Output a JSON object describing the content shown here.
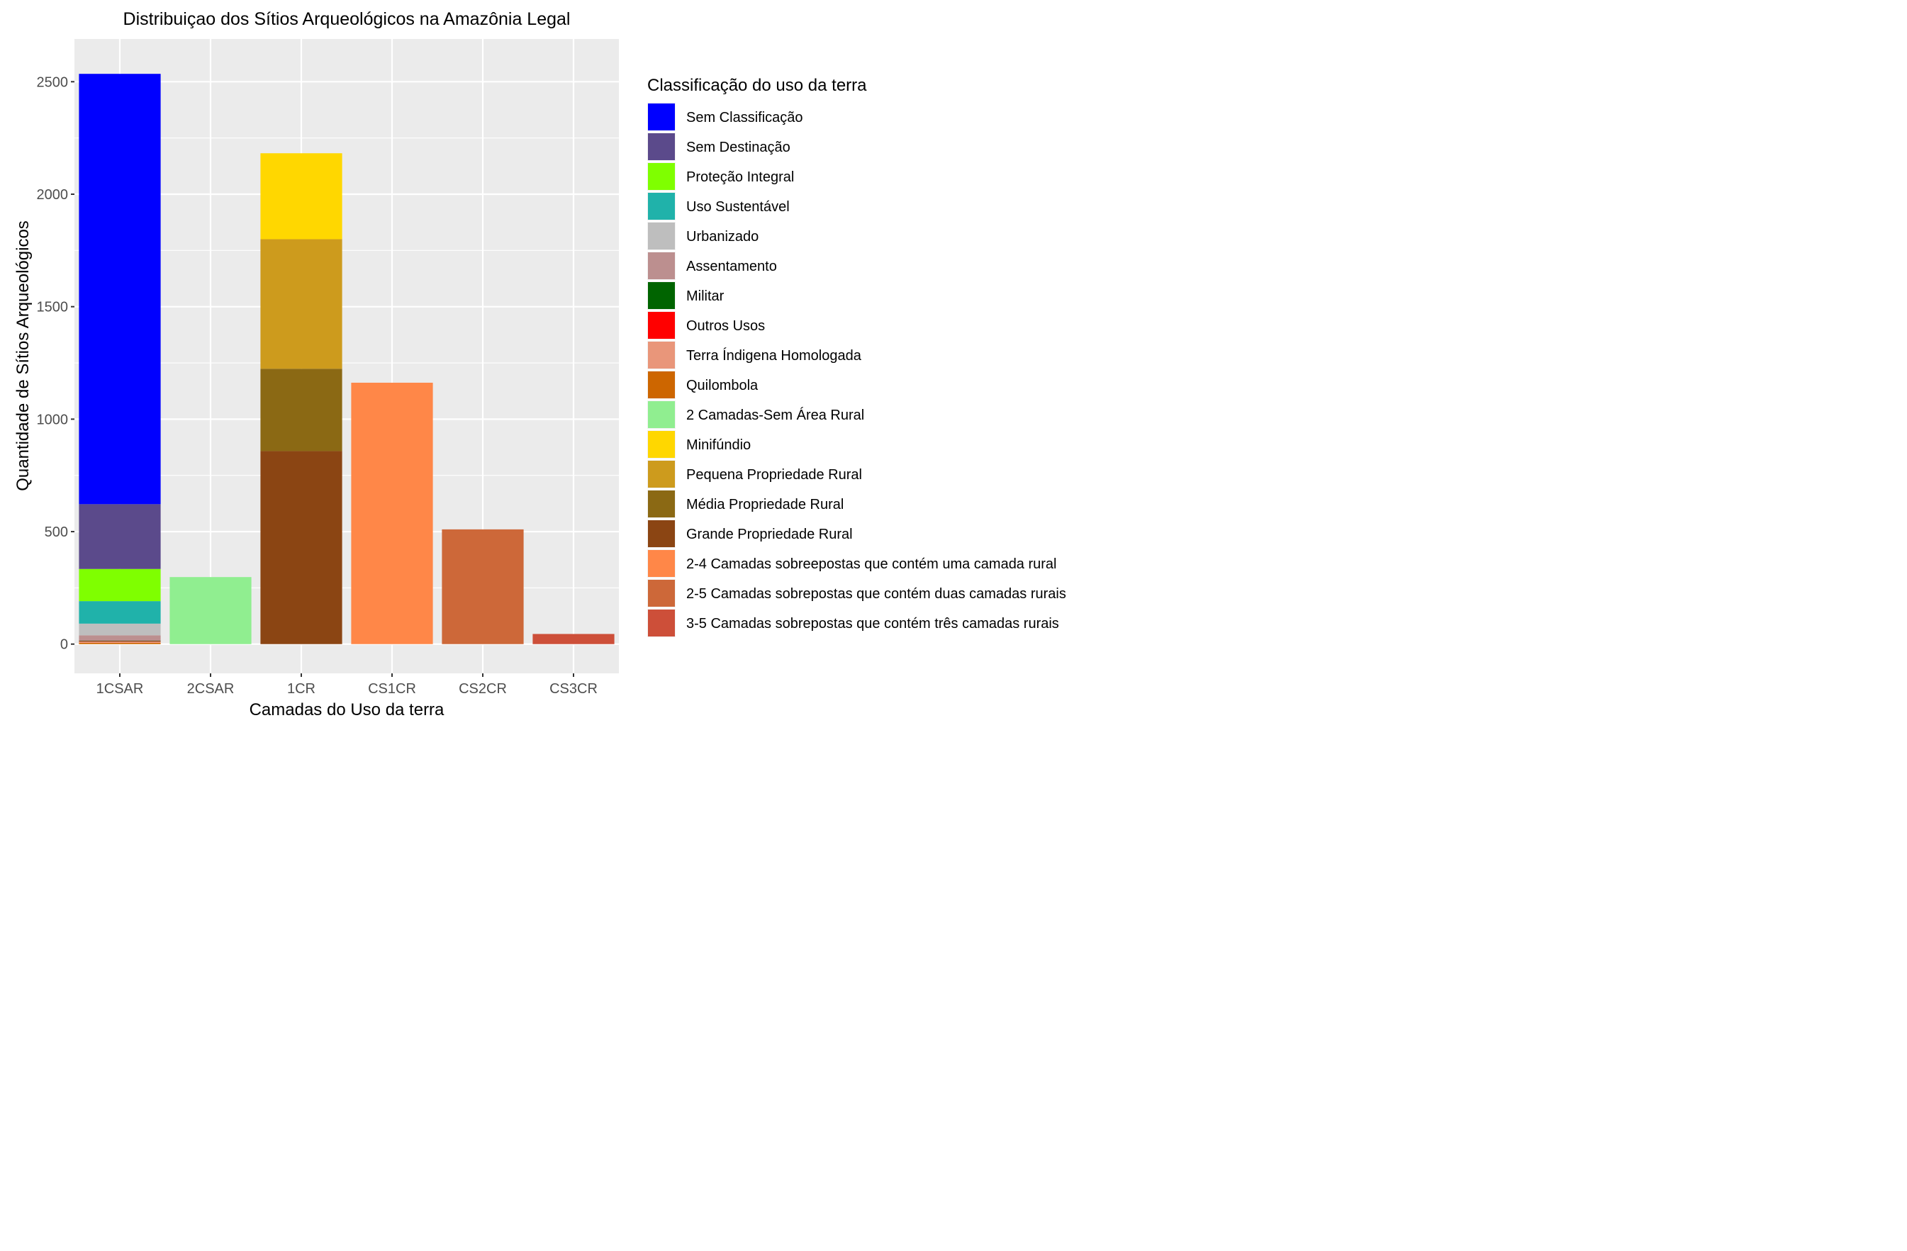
{
  "chart_data": {
    "type": "bar",
    "stacked": true,
    "title": "Distribuiçao dos Sítios Arqueológicos na Amazônia Legal",
    "xlabel": "Camadas do Uso da terra",
    "ylabel": "Quantidade de Sítios Arqueológicos",
    "ylim": [
      -130,
      2690
    ],
    "yticks": [
      0,
      500,
      1000,
      1500,
      2000,
      2500
    ],
    "ytick_labels": [
      "0",
      "500",
      "1000",
      "1500",
      "2000",
      "2500"
    ],
    "grid": true,
    "categories": [
      "1CSAR",
      "2CSAR",
      "1CR",
      "CS1CR",
      "CS2CR",
      "CS3CR"
    ],
    "legend": {
      "title": "Classificação do uso da terra",
      "position": "right"
    },
    "series": [
      {
        "name": "Sem Classificação",
        "color": "#0000FF",
        "values": [
          1913,
          0,
          0,
          0,
          0,
          0
        ]
      },
      {
        "name": "Sem Destinação",
        "color": "#5B4A8B",
        "values": [
          288,
          0,
          0,
          0,
          0,
          0
        ]
      },
      {
        "name": "Proteção Integral",
        "color": "#7FFF00",
        "values": [
          143,
          0,
          0,
          0,
          0,
          0
        ]
      },
      {
        "name": "Uso Sustentável",
        "color": "#20B2AA",
        "values": [
          100,
          0,
          0,
          0,
          0,
          0
        ]
      },
      {
        "name": "Urbanizado",
        "color": "#BEBEBE",
        "values": [
          52,
          0,
          0,
          0,
          0,
          0
        ]
      },
      {
        "name": "Assentamento",
        "color": "#BC8F8F",
        "values": [
          24,
          0,
          0,
          0,
          0,
          0
        ]
      },
      {
        "name": "Militar",
        "color": "#006400",
        "values": [
          2,
          0,
          0,
          0,
          0,
          0
        ]
      },
      {
        "name": "Outros Usos",
        "color": "#FF0000",
        "values": [
          2,
          0,
          0,
          0,
          0,
          0
        ]
      },
      {
        "name": "Terra Índigena Homologada",
        "color": "#E9967A",
        "values": [
          5,
          0,
          0,
          0,
          0,
          0
        ]
      },
      {
        "name": "Quilombola",
        "color": "#CD6600",
        "values": [
          6,
          0,
          0,
          0,
          0,
          0
        ]
      },
      {
        "name": "2 Camadas-Sem Área Rural",
        "color": "#90EE90",
        "values": [
          0,
          298,
          0,
          0,
          0,
          0
        ]
      },
      {
        "name": "Minifúndio",
        "color": "#FFD700",
        "values": [
          0,
          0,
          382,
          0,
          0,
          0
        ]
      },
      {
        "name": "Pequena Propriedade Rural",
        "color": "#CD9B1D",
        "values": [
          0,
          0,
          576,
          0,
          0,
          0
        ]
      },
      {
        "name": "Média Propriedade Rural",
        "color": "#8B6914",
        "values": [
          0,
          0,
          366,
          0,
          0,
          0
        ]
      },
      {
        "name": "Grande Propriedade Rural",
        "color": "#8B4513",
        "values": [
          0,
          0,
          858,
          0,
          0,
          0
        ]
      },
      {
        "name": "2-4 Camadas sobreepostas que contém  uma camada rural",
        "color": "#FF8748",
        "values": [
          0,
          0,
          0,
          1162,
          0,
          0
        ]
      },
      {
        "name": "2-5 Camadas sobrepostas que contém duas camadas rurais",
        "color": "#CD6839",
        "values": [
          0,
          0,
          0,
          0,
          510,
          0
        ]
      },
      {
        "name": "3-5 Camadas sobrepostas que contém três camadas rurais",
        "color": "#CD4F39",
        "values": [
          0,
          0,
          0,
          0,
          0,
          45
        ]
      }
    ]
  }
}
